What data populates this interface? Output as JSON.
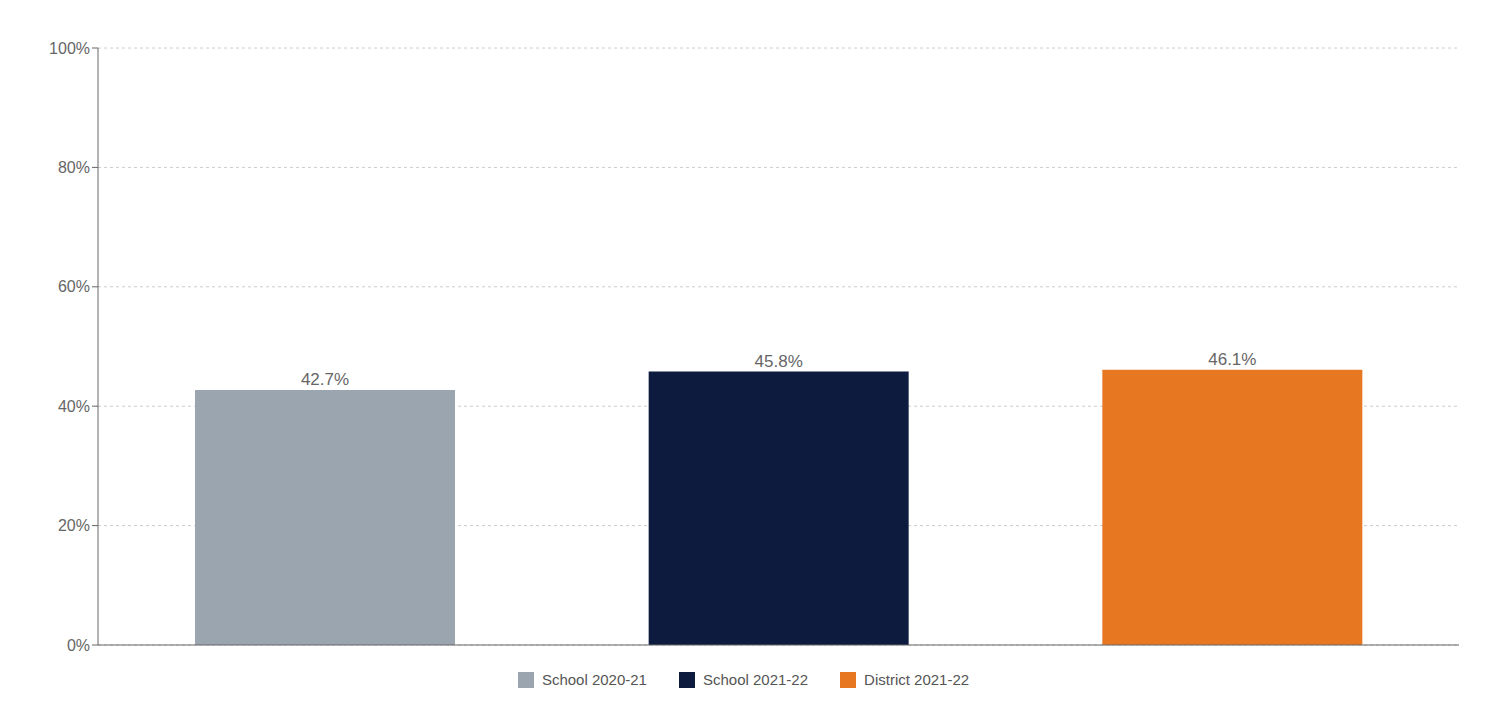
{
  "chart_data": {
    "type": "bar",
    "categories": [
      "School 2020-21",
      "School 2021-22",
      "District 2021-22"
    ],
    "values": [
      42.7,
      45.8,
      46.1
    ],
    "value_labels": [
      "42.7%",
      "45.8%",
      "46.1%"
    ],
    "colors": [
      "#9aa5b0",
      "#0d1b3e",
      "#e87722"
    ],
    "ylim": [
      0,
      100
    ],
    "yticks": [
      {
        "value": 0,
        "label": "0%"
      },
      {
        "value": 20,
        "label": "20%"
      },
      {
        "value": 40,
        "label": "40%"
      },
      {
        "value": 60,
        "label": "60%"
      },
      {
        "value": 80,
        "label": "80%"
      },
      {
        "value": 100,
        "label": "100%"
      }
    ],
    "grid": true,
    "legend": "bottom",
    "data_labels": true,
    "tick_labels": "y"
  }
}
